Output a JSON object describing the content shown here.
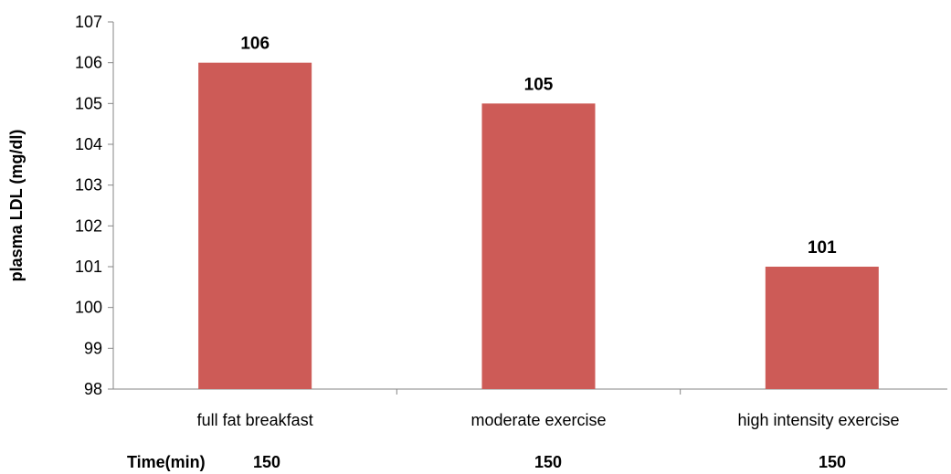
{
  "chart_data": {
    "type": "bar",
    "categories": [
      "full fat breakfast",
      "moderate exercise",
      "high intensity exercise"
    ],
    "values": [
      106,
      105,
      101
    ],
    "data_labels": [
      "106",
      "105",
      "101"
    ],
    "ylabel": "plasma LDL (mg/dl)",
    "ylim": [
      98,
      107
    ],
    "yticks": [
      "98",
      "99",
      "100",
      "101",
      "102",
      "103",
      "104",
      "105",
      "106",
      "107"
    ],
    "grid": false,
    "bar_color": "#CD5B57",
    "time_row": {
      "label": "Time(min)",
      "values": [
        "150",
        "150",
        "150"
      ]
    }
  }
}
